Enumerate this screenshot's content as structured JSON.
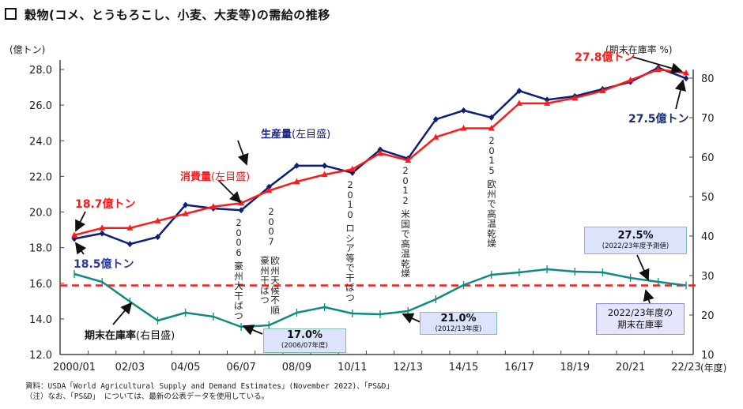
{
  "title": "穀物(コメ、とうもろこし、小麦、大麦等)の需給の推移",
  "chart_data": {
    "type": "line",
    "title": "穀物(コメ、とうもろこし、小麦、大麦等)の需給の推移",
    "x": [
      "2000/01",
      "01/02",
      "02/03",
      "03/04",
      "04/05",
      "05/06",
      "06/07",
      "07/08",
      "08/09",
      "09/10",
      "10/11",
      "11/12",
      "12/13",
      "13/14",
      "14/15",
      "15/16",
      "16/17",
      "17/18",
      "18/19",
      "19/20",
      "20/21",
      "21/22",
      "22/23"
    ],
    "x_tick_labels": [
      "2000/01",
      "02/03",
      "04/05",
      "06/07",
      "08/09",
      "10/11",
      "12/13",
      "14/15",
      "16/17",
      "18/19",
      "20/21",
      "22/23"
    ],
    "xlabel": "(年度)",
    "ylabel_left": "(億トン)",
    "ylabel_right": "(期末在庫率 %)",
    "ylim_left": [
      12.0,
      28.0
    ],
    "ylim_right": [
      10,
      80
    ],
    "yticks_left": [
      "28.0",
      "26.0",
      "24.0",
      "22.0",
      "20.0",
      "18.0",
      "16.0",
      "14.0",
      "12.0"
    ],
    "yticks_right": [
      "80",
      "70",
      "60",
      "50",
      "40",
      "30",
      "20",
      "10"
    ],
    "grid": false,
    "series": [
      {
        "name": "生産量",
        "axis": "left",
        "color": "#0b1f7a",
        "marker": "diamond",
        "values": [
          18.5,
          18.8,
          18.2,
          18.6,
          20.4,
          20.2,
          20.1,
          21.4,
          22.6,
          22.6,
          22.2,
          23.5,
          23.0,
          25.2,
          25.7,
          25.3,
          26.8,
          26.3,
          26.5,
          26.9,
          27.3,
          28.1,
          27.5
        ]
      },
      {
        "name": "消費量",
        "axis": "left",
        "color": "#ff1a1a",
        "marker": "triangle",
        "values": [
          18.7,
          19.1,
          19.1,
          19.5,
          19.9,
          20.3,
          20.5,
          21.2,
          21.7,
          22.1,
          22.4,
          23.3,
          22.9,
          24.2,
          24.7,
          24.7,
          26.1,
          26.1,
          26.4,
          26.8,
          27.4,
          28.0,
          27.8
        ]
      },
      {
        "name": "期末在庫率",
        "axis": "right",
        "color": "#0f8a80",
        "marker": "tick",
        "values": [
          30.4,
          28.4,
          23.4,
          18.6,
          20.6,
          19.6,
          17.0,
          17.4,
          20.6,
          22.0,
          20.4,
          20.2,
          21.0,
          24.0,
          27.6,
          30.2,
          30.8,
          31.6,
          31.0,
          30.8,
          29.4,
          28.4,
          27.5
        ]
      }
    ],
    "reference_line": {
      "axis": "right",
      "value": 27.5,
      "color": "#ff1a1a",
      "style": "dashed",
      "label": "2022/23年度の期末在庫率"
    },
    "annotations": {
      "production_series_label": {
        "name": "生産量",
        "suffix": "(左目盛)"
      },
      "consumption_series_label": {
        "name": "消費量",
        "suffix": "(左目盛)"
      },
      "stock_series_label": {
        "name": "期末在庫率",
        "suffix": "(右目盛)"
      },
      "start_consumption": "18.7億トン",
      "start_production": "18.5億トン",
      "end_consumption": "27.8億トン",
      "end_production": "27.5億トン",
      "events": [
        {
          "year": "2006",
          "text": "豪州大干ばつ"
        },
        {
          "year": "2007",
          "text_a": "豪州干ばつ",
          "text_b": "欧州天候不順"
        },
        {
          "year": "2010",
          "text": "ロシア等で干ばつ"
        },
        {
          "year": "2012",
          "text": "米国で高温乾燥"
        },
        {
          "year": "2015",
          "text": "欧州で高温乾燥"
        }
      ],
      "callouts": [
        {
          "value": "17.0%",
          "note": "(2006/07年度)"
        },
        {
          "value": "21.0%",
          "note": "(2012/13年度)"
        },
        {
          "value": "27.5%",
          "note": "(2022/23年度予測値)"
        }
      ],
      "reference_box_line1": "2022/23年度の",
      "reference_box_line2": "期末在庫率"
    }
  },
  "source": {
    "line1": "資料：USDA「World Agricultural Supply and Demand Estimates」(November 2022)、「PS&D」",
    "line2": "（注）なお、「PS&D」 については、最新の公表データを使用している。"
  }
}
